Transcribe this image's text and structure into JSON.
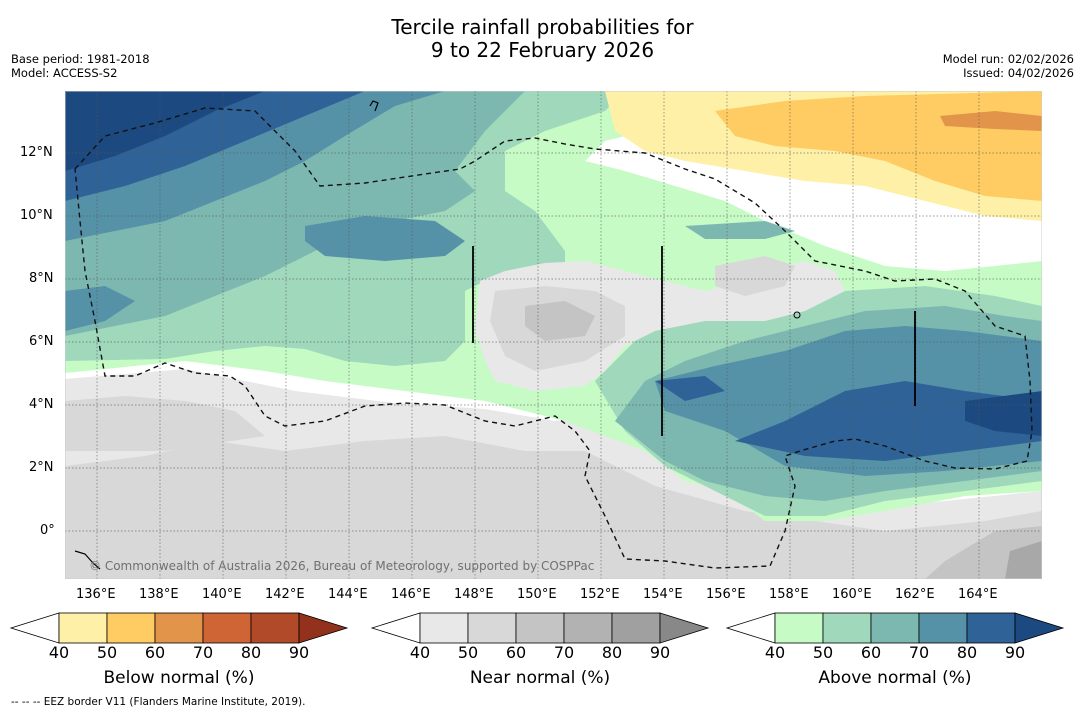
{
  "title": {
    "line1": "Tercile rainfall probabilities for",
    "line2": "9 to 22 February 2026"
  },
  "meta_left": {
    "base_period": "Base period: 1981-2018",
    "model": "Model: ACCESS-S2"
  },
  "meta_right": {
    "model_run": "Model run: 02/02/2026",
    "issued": "Issued: 04/02/2026"
  },
  "map": {
    "lon_labels": [
      "136°E",
      "138°E",
      "140°E",
      "142°E",
      "144°E",
      "146°E",
      "148°E",
      "150°E",
      "152°E",
      "154°E",
      "156°E",
      "158°E",
      "160°E",
      "162°E",
      "164°E"
    ],
    "lat_labels": [
      "12°N",
      "10°N",
      "8°N",
      "6°N",
      "4°N",
      "2°N",
      "0°"
    ],
    "lon_range": [
      135,
      166
    ],
    "lat_range": [
      -1.5,
      14
    ],
    "copyright": "© Commonwealth of Australia 2026, Bureau of Meteorology, supported by COSPPac"
  },
  "colorbars": [
    {
      "title": "Below normal (%)",
      "ticks": [
        "40",
        "50",
        "60",
        "70",
        "80",
        "90"
      ],
      "colors": [
        "#fff0a8",
        "#fecc62",
        "#e2944a",
        "#cf6534",
        "#b04a28",
        "#93321c"
      ]
    },
    {
      "title": "Near normal (%)",
      "ticks": [
        "40",
        "50",
        "60",
        "70",
        "80",
        "90"
      ],
      "colors": [
        "#e8e8e8",
        "#d8d8d8",
        "#c4c4c4",
        "#b2b2b2",
        "#a0a0a0",
        "#888888"
      ]
    },
    {
      "title": "Above normal (%)",
      "ticks": [
        "40",
        "50",
        "60",
        "70",
        "80",
        "90"
      ],
      "colors": [
        "#c6fbc6",
        "#a0d8bc",
        "#7cb8b0",
        "#5592a8",
        "#2f6397",
        "#1c4a80"
      ]
    }
  ],
  "colors": {
    "above_40": "#c6fbc6",
    "above_50": "#a0d8bc",
    "above_60": "#7cb8b0",
    "above_70": "#5592a8",
    "above_80": "#2f6397",
    "above_90": "#1c4a80",
    "near_40": "#e8e8e8",
    "near_50": "#d8d8d8",
    "near_60": "#c4c4c4",
    "near_70": "#b2b2b2",
    "below_40": "#fff0a8",
    "below_50": "#fecc62",
    "below_60": "#e2944a"
  },
  "footnote": "--  --  -- EEZ border V11 (Flanders Marine Institute, 2019)."
}
